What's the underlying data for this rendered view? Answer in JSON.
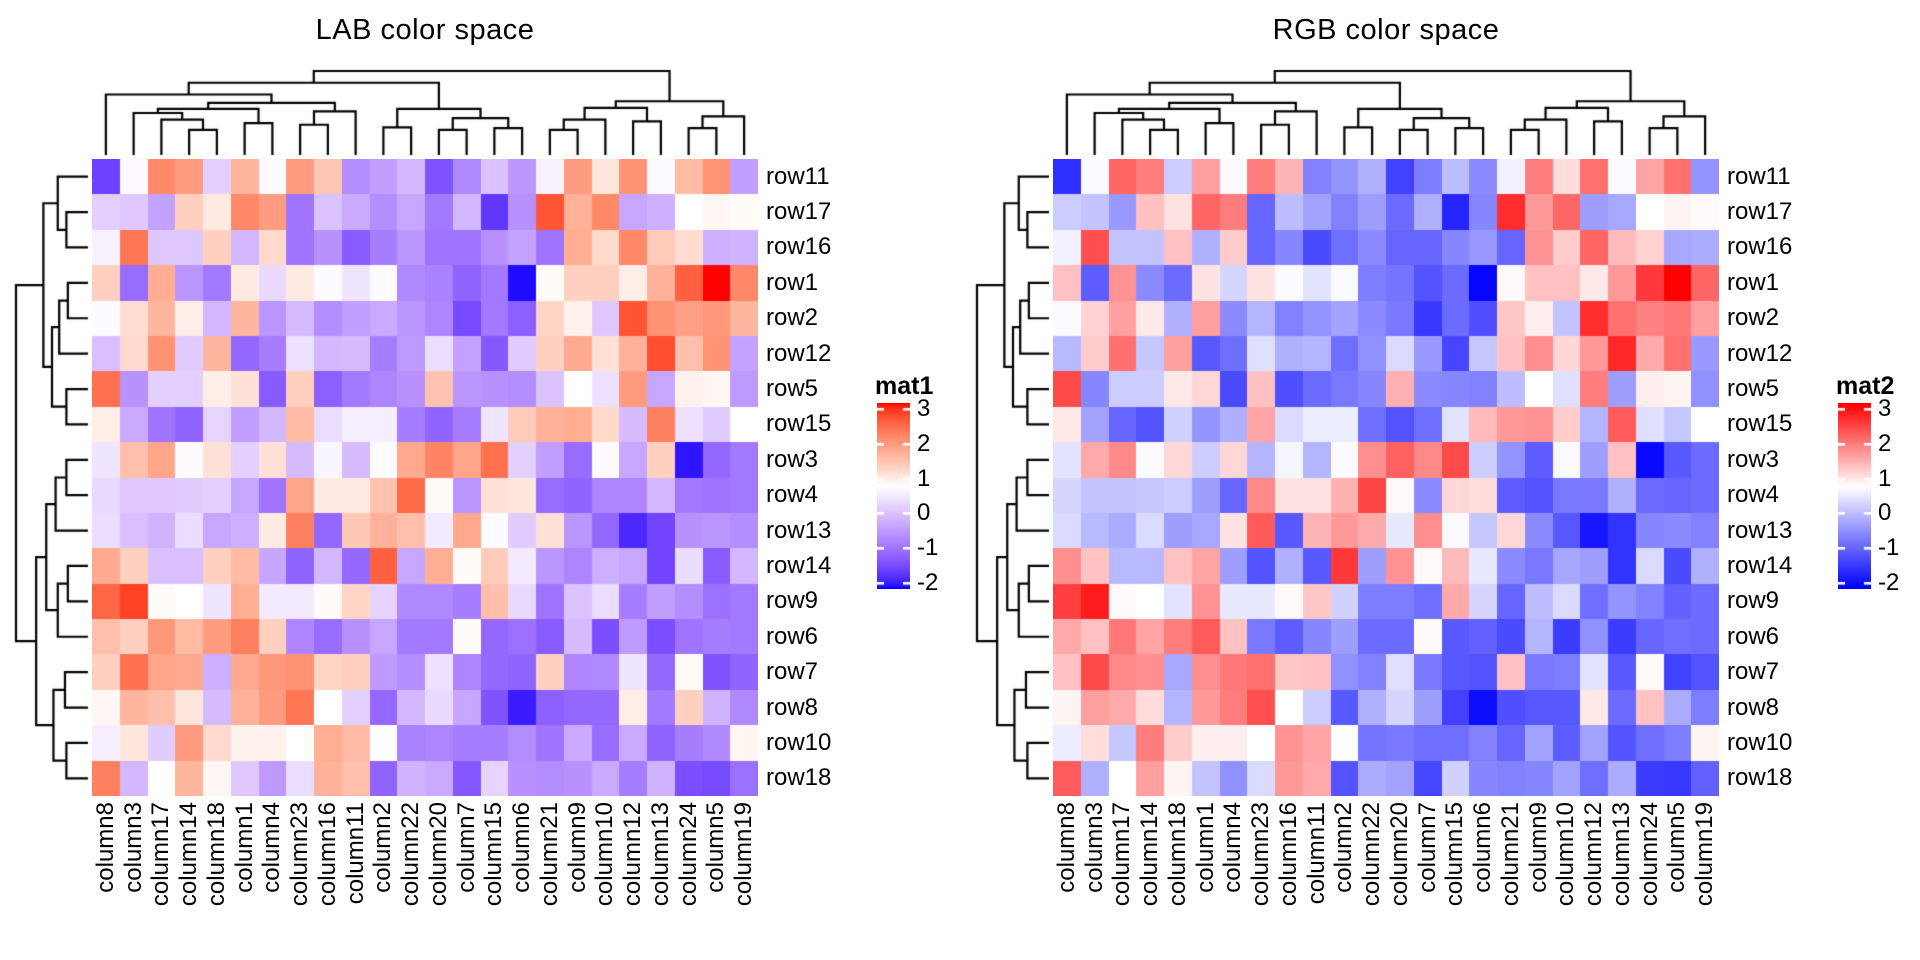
{
  "panels": [
    {
      "title": "LAB color space",
      "legend_title": "mat1",
      "color_space": "LAB"
    },
    {
      "title": "RGB color space",
      "legend_title": "mat2",
      "color_space": "RGB"
    }
  ],
  "legend": {
    "ticks": [
      "3",
      "2",
      "1",
      "0",
      "-1",
      "-2"
    ]
  },
  "chart_data": {
    "type": "heatmap",
    "titles": [
      "LAB color space",
      "RGB color space"
    ],
    "legend_titles": [
      "mat1",
      "mat2"
    ],
    "row_labels": [
      "row11",
      "row17",
      "row16",
      "row1",
      "row2",
      "row12",
      "row5",
      "row15",
      "row3",
      "row4",
      "row13",
      "row14",
      "row9",
      "row6",
      "row7",
      "row8",
      "row10",
      "row18"
    ],
    "col_labels": [
      "column8",
      "column3",
      "column17",
      "column14",
      "column18",
      "column1",
      "column4",
      "column23",
      "column16",
      "column11",
      "column2",
      "column22",
      "column20",
      "column7",
      "column15",
      "column6",
      "column21",
      "column9",
      "column10",
      "column12",
      "column13",
      "column24",
      "column5",
      "column19"
    ],
    "color_scale": {
      "breaks": [
        -2,
        0.75,
        3
      ],
      "colors": [
        "#0000FF",
        "#FFFFFF",
        "#FF0000"
      ],
      "legend_range": [
        3,
        -2
      ]
    },
    "values": [
      [
        -1.5,
        0.7,
        2.1,
        1.9,
        0.2,
        1.6,
        0.7,
        1.9,
        1.4,
        -0.6,
        -0.4,
        -0.1,
        -1.3,
        -0.65,
        0.05,
        -0.5,
        0.6,
        1.9,
        1.05,
        2.0,
        0.7,
        1.55,
        2.0,
        -0.4
      ],
      [
        0.2,
        0.1,
        -0.35,
        1.3,
        1.0,
        2.1,
        1.9,
        -0.9,
        0.05,
        -0.25,
        -0.6,
        -0.3,
        -0.85,
        -0.1,
        -1.6,
        -0.55,
        2.6,
        1.65,
        2.1,
        -0.3,
        -0.2,
        0.75,
        0.85,
        0.8
      ],
      [
        0.6,
        2.3,
        0.1,
        0.1,
        1.3,
        -0.1,
        1.2,
        -0.9,
        -0.55,
        -1.2,
        -0.8,
        -0.5,
        -0.9,
        -0.9,
        -0.55,
        -0.35,
        -0.9,
        1.7,
        1.2,
        2.1,
        1.35,
        1.15,
        -0.2,
        -0.15
      ],
      [
        1.3,
        -1.0,
        1.7,
        -0.5,
        -0.85,
        1.0,
        0.3,
        1.0,
        0.7,
        0.45,
        0.7,
        -0.65,
        -0.75,
        -1.1,
        -0.85,
        -1.95,
        0.8,
        1.3,
        1.3,
        0.95,
        1.65,
        2.5,
        3.0,
        2.1
      ],
      [
        0.7,
        1.15,
        1.6,
        0.95,
        -0.1,
        1.6,
        -0.5,
        -0.05,
        -0.6,
        -0.4,
        -0.25,
        -0.5,
        -0.7,
        -1.4,
        -0.85,
        -1.15,
        1.25,
        0.9,
        0.1,
        2.6,
        2.0,
        1.85,
        1.95,
        1.6
      ],
      [
        0.0,
        1.2,
        2.0,
        0.15,
        1.6,
        -1.05,
        -0.8,
        0.4,
        -0.1,
        -0.05,
        -0.8,
        -0.45,
        0.35,
        -0.35,
        -1.25,
        0.15,
        1.3,
        1.75,
        1.1,
        1.65,
        2.65,
        1.5,
        2.0,
        -0.35
      ],
      [
        2.35,
        -0.55,
        0.2,
        0.2,
        0.95,
        1.1,
        -1.2,
        1.3,
        -1.15,
        -0.85,
        -0.7,
        -0.55,
        1.45,
        -0.5,
        -0.55,
        -0.6,
        0.05,
        0.75,
        0.4,
        1.9,
        -0.3,
        0.9,
        0.85,
        -0.45
      ],
      [
        0.95,
        -0.25,
        -0.9,
        -1.1,
        0.25,
        -0.4,
        -0.1,
        1.55,
        0.35,
        0.55,
        0.55,
        -0.8,
        -1.1,
        -0.8,
        0.45,
        1.35,
        1.65,
        1.7,
        1.2,
        -0.05,
        2.2,
        0.4,
        0.15,
        0.75
      ],
      [
        0.45,
        1.5,
        1.8,
        0.7,
        1.1,
        0.2,
        1.1,
        -0.05,
        0.65,
        -0.05,
        0.7,
        1.75,
        2.15,
        1.8,
        2.35,
        0.2,
        -0.4,
        -1.0,
        0.7,
        -0.3,
        1.3,
        -1.9,
        -1.05,
        -0.85
      ],
      [
        0.3,
        0.1,
        0.1,
        0.15,
        0.2,
        -0.3,
        -0.9,
        1.8,
        1.0,
        1.0,
        1.45,
        2.4,
        0.8,
        -0.5,
        1.1,
        1.05,
        -1.0,
        -1.1,
        -0.7,
        -0.7,
        -0.1,
        -0.85,
        -0.9,
        -0.85
      ],
      [
        0.35,
        0.0,
        -0.15,
        0.35,
        -0.3,
        -0.2,
        1.0,
        2.2,
        -1.05,
        1.4,
        1.65,
        1.5,
        0.5,
        1.75,
        0.7,
        0.15,
        1.1,
        -0.5,
        -1.05,
        -1.75,
        -1.45,
        -0.55,
        -0.5,
        -0.6
      ],
      [
        1.75,
        1.3,
        0.0,
        0.0,
        1.3,
        1.55,
        -0.3,
        -1.1,
        -0.1,
        -1.05,
        2.5,
        -0.3,
        1.7,
        0.8,
        1.35,
        0.5,
        -0.5,
        -0.7,
        -0.2,
        -0.3,
        -1.45,
        0.35,
        -1.2,
        -0.1
      ],
      [
        2.45,
        2.75,
        0.8,
        0.75,
        0.45,
        1.7,
        0.5,
        0.5,
        0.8,
        1.25,
        0.25,
        -0.65,
        -0.65,
        -0.8,
        1.5,
        0.3,
        -0.9,
        0.05,
        0.35,
        -0.8,
        -0.4,
        -0.6,
        -0.95,
        -0.85
      ],
      [
        1.5,
        1.3,
        1.95,
        1.55,
        1.9,
        2.2,
        1.3,
        -0.7,
        -1.0,
        -0.55,
        -0.3,
        -0.85,
        -0.85,
        0.8,
        -1.05,
        -0.95,
        -1.2,
        -0.05,
        -1.35,
        -0.45,
        -1.35,
        -0.9,
        -0.8,
        -0.85
      ],
      [
        1.3,
        2.35,
        1.8,
        1.75,
        -0.2,
        1.75,
        1.95,
        2.0,
        1.25,
        1.3,
        -0.45,
        -0.6,
        0.4,
        -0.7,
        -1.05,
        -1.1,
        1.3,
        -0.7,
        -0.65,
        0.45,
        -1.05,
        0.8,
        -1.3,
        -1.1
      ],
      [
        0.85,
        1.6,
        1.5,
        1.05,
        -0.05,
        1.65,
        1.9,
        2.3,
        0.75,
        0.2,
        -1.05,
        -0.1,
        0.3,
        -0.3,
        -1.3,
        -1.85,
        -1.15,
        -1.05,
        -1.05,
        0.95,
        -0.85,
        1.3,
        -0.15,
        -0.65
      ],
      [
        0.55,
        1.05,
        0.15,
        1.9,
        1.2,
        0.9,
        0.9,
        0.75,
        1.7,
        1.55,
        0.75,
        -0.75,
        -0.7,
        -0.8,
        -0.8,
        -0.6,
        -0.9,
        -0.25,
        -1.0,
        -0.25,
        -1.1,
        -0.8,
        -0.65,
        0.85
      ],
      [
        2.2,
        -0.1,
        0.75,
        1.6,
        0.85,
        0.1,
        -0.45,
        0.35,
        1.65,
        1.5,
        -1.1,
        -0.15,
        -0.25,
        -1.25,
        0.25,
        -0.55,
        -0.6,
        -0.55,
        -0.25,
        -0.8,
        -0.15,
        -1.35,
        -1.4,
        -0.95
      ]
    ],
    "col_dendrogram": [
      1.0,
      [
        0.86,
        [
          0.72,
          0,
          [
            0.62,
            [
              0.55,
              [
                0.5,
                1,
                [
                  0.42,
                  2,
                  [
                    0.3,
                    3,
                    4
                  ]
                ]
              ],
              [
                0.38,
                5,
                6
              ]
            ],
            [
              0.52,
              [
                0.36,
                7,
                8
              ],
              9
            ]
          ]
        ],
        [
          0.55,
          [
            0.33,
            10,
            11
          ],
          [
            0.44,
            [
              0.3,
              12,
              13
            ],
            [
              0.32,
              14,
              15
            ]
          ]
        ]
      ],
      [
        0.64,
        [
          0.56,
          [
            0.42,
            [
              0.3,
              16,
              17
            ],
            18
          ],
          [
            0.4,
            19,
            20
          ]
        ],
        [
          0.46,
          [
            0.32,
            21,
            22
          ],
          23
        ]
      ]
    ],
    "row_dendrogram": [
      1.0,
      [
        0.62,
        [
          0.42,
          0,
          [
            0.3,
            1,
            2
          ]
        ],
        [
          0.5,
          [
            0.4,
            [
              0.28,
              3,
              4
            ],
            5
          ],
          [
            0.3,
            6,
            7
          ]
        ]
      ],
      [
        0.72,
        [
          0.58,
          [
            0.45,
            [
              0.3,
              8,
              9
            ],
            10
          ],
          [
            0.42,
            [
              0.28,
              11,
              12
            ],
            13
          ]
        ],
        [
          0.48,
          [
            0.32,
            14,
            15
          ],
          [
            0.3,
            16,
            17
          ]
        ]
      ]
    ]
  }
}
